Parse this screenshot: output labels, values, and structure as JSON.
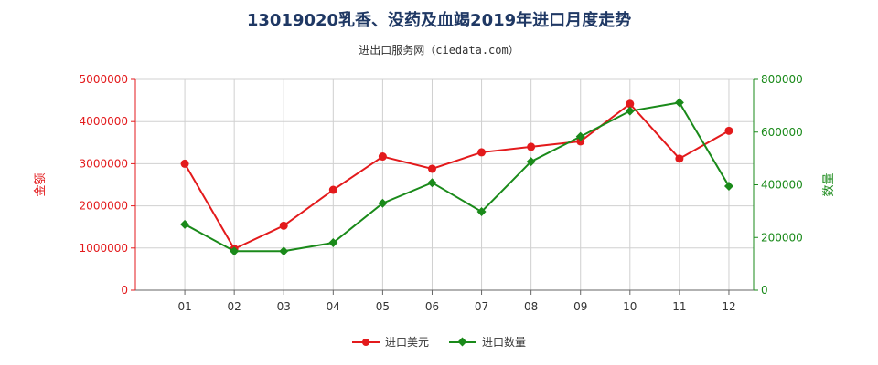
{
  "chart_data": {
    "type": "line",
    "title": "13019020乳香、没药及血竭2019年进口月度走势",
    "subtitle": "进出口服务网（ciedata.com）",
    "categories": [
      "01",
      "02",
      "03",
      "04",
      "05",
      "06",
      "07",
      "08",
      "09",
      "10",
      "11",
      "12"
    ],
    "y_left": {
      "label": "金额",
      "min": 0,
      "max": 5000000,
      "ticks": [
        "0",
        "1000000",
        "2000000",
        "3000000",
        "4000000",
        "5000000"
      ]
    },
    "y_right": {
      "label": "数量",
      "min": 0,
      "max": 800000,
      "ticks": [
        "0",
        "200000",
        "400000",
        "600000",
        "800000"
      ]
    },
    "series": [
      {
        "name": "进口美元",
        "axis": "left",
        "color": "#e31a1c",
        "marker": "circle",
        "values": [
          3000000,
          980000,
          1530000,
          2380000,
          3170000,
          2880000,
          3270000,
          3400000,
          3530000,
          4420000,
          3120000,
          3780000
        ]
      },
      {
        "name": "进口数量",
        "axis": "right",
        "color": "#1a8a1a",
        "marker": "diamond",
        "values": [
          250000,
          148000,
          148000,
          180000,
          330000,
          408000,
          298000,
          488000,
          583000,
          680000,
          712000,
          395000
        ]
      }
    ],
    "grid": true,
    "legend_position": "bottom"
  }
}
